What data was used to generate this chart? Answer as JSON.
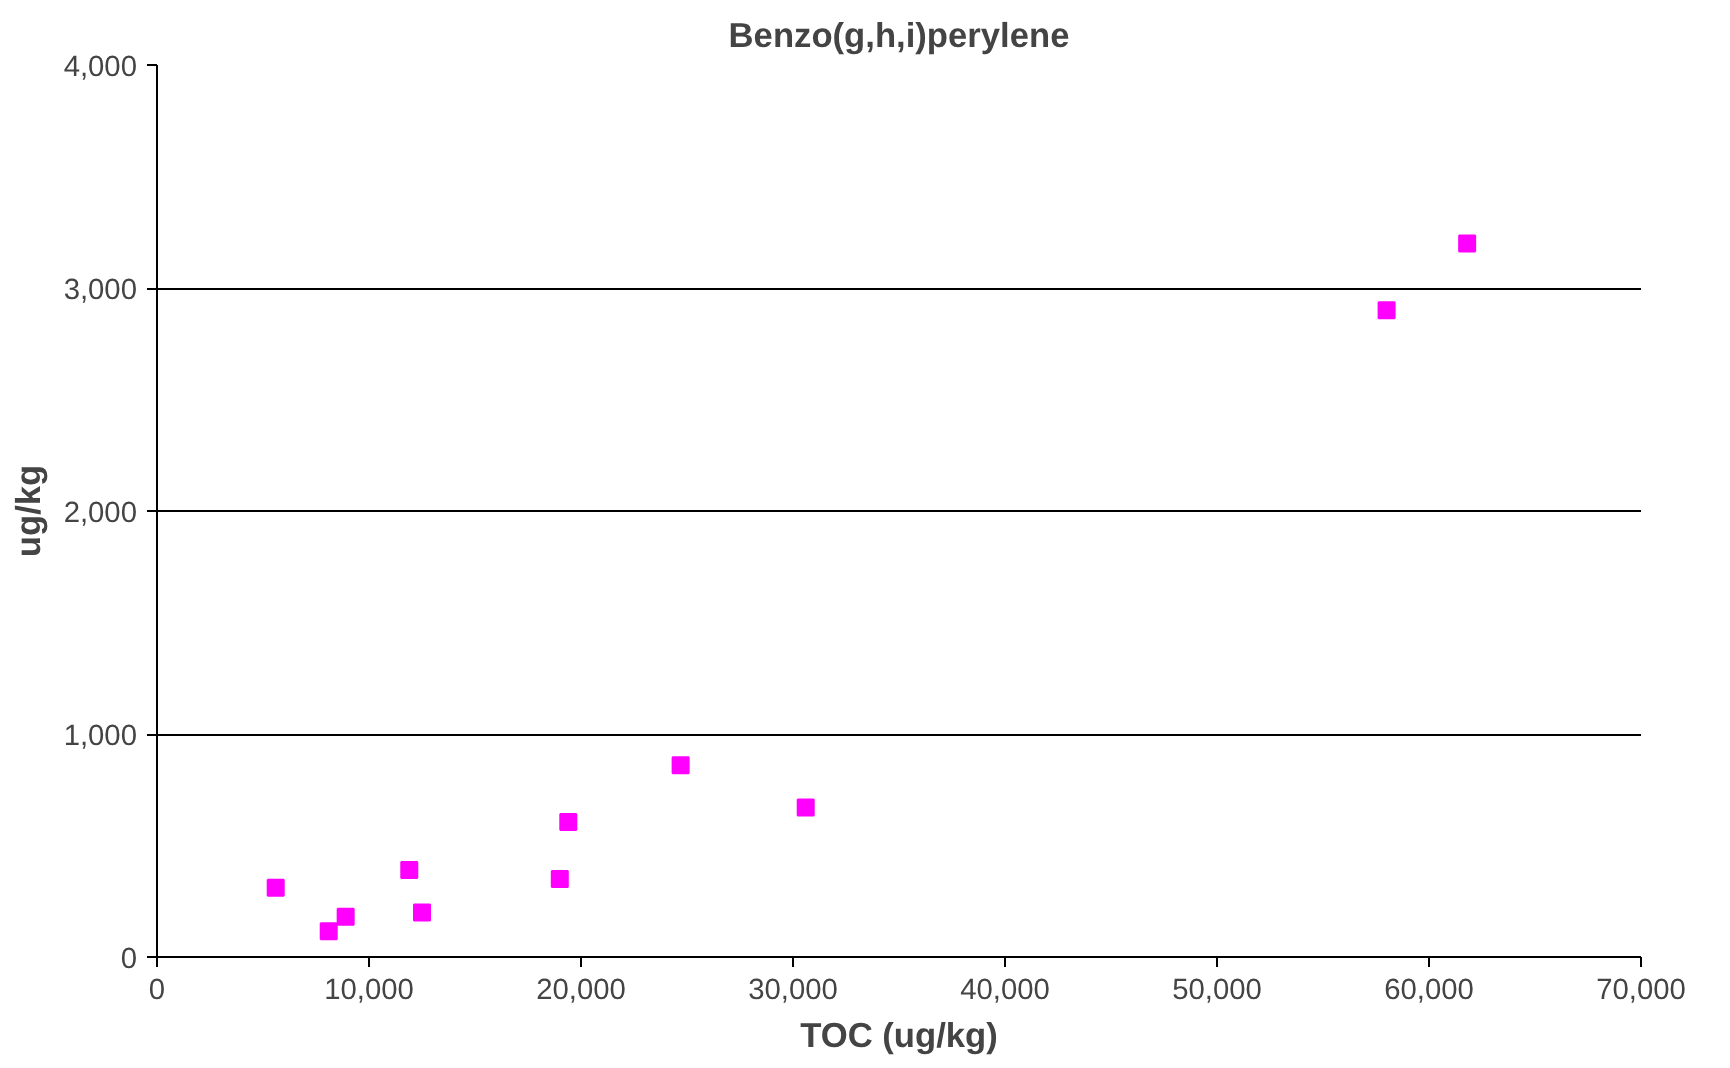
{
  "chart_data": {
    "type": "scatter",
    "title": "Benzo(g,h,i)perylene",
    "xlabel": "TOC (ug/kg)",
    "ylabel": "ug/kg",
    "x": [
      5600,
      8100,
      8900,
      11900,
      12500,
      19000,
      19400,
      24700,
      30600,
      58000,
      61800
    ],
    "series": [
      {
        "color": "#ff00ff",
        "values": [
          310,
          115,
          180,
          390,
          200,
          350,
          605,
          860,
          670,
          2900,
          3200
        ]
      }
    ],
    "marker": "square",
    "xlim": [
      0,
      70000
    ],
    "ylim": [
      0,
      4000
    ],
    "xticks": [
      {
        "value": 0,
        "label": "0"
      },
      {
        "value": 10000,
        "label": "10,000"
      },
      {
        "value": 20000,
        "label": "20,000"
      },
      {
        "value": 30000,
        "label": "30,000"
      },
      {
        "value": 40000,
        "label": "40,000"
      },
      {
        "value": 50000,
        "label": "50,000"
      },
      {
        "value": 60000,
        "label": "60,000"
      },
      {
        "value": 70000,
        "label": "70,000"
      }
    ],
    "yticks": [
      {
        "value": 0,
        "label": "0"
      },
      {
        "value": 1000,
        "label": "1,000"
      },
      {
        "value": 2000,
        "label": "2,000"
      },
      {
        "value": 3000,
        "label": "3,000"
      },
      {
        "value": 4000,
        "label": "4,000"
      }
    ],
    "grid": "y"
  }
}
